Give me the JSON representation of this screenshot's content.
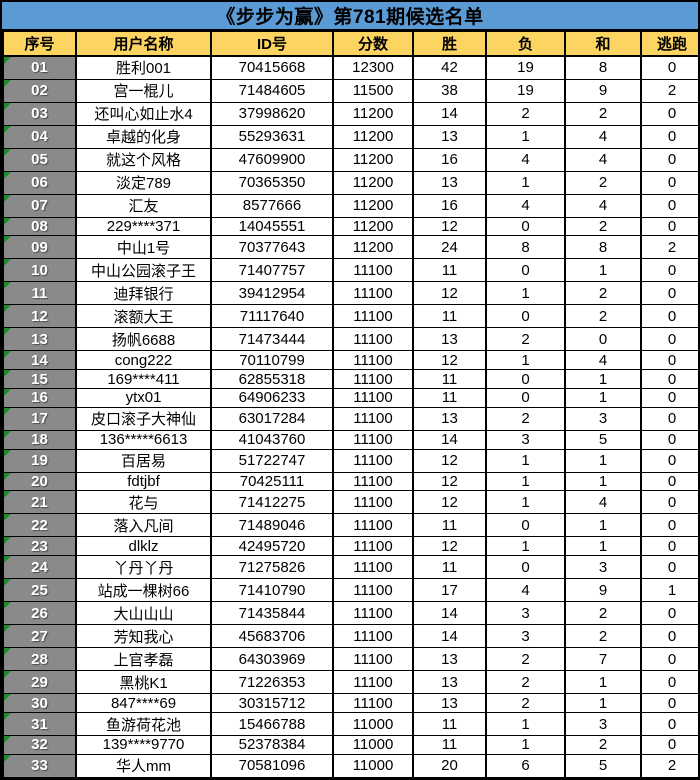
{
  "title": "《步步为赢》第781期候选名单",
  "colors": {
    "title_bg": "#5B9BD5",
    "header_bg": "#FCD462",
    "index_bg": "#8A8A8A",
    "index_text": "#FFFFFF",
    "corner_flag_green": "#1F8A2F",
    "border": "#000000"
  },
  "table": {
    "columns": [
      "序号",
      "用户名称",
      "ID号",
      "分数",
      "胜",
      "负",
      "和",
      "逃跑"
    ],
    "rows": [
      [
        "01",
        "胜利001",
        "70415668",
        "12300",
        "42",
        "19",
        "8",
        "0"
      ],
      [
        "02",
        "宫一棍儿",
        "71484605",
        "11500",
        "38",
        "19",
        "9",
        "2"
      ],
      [
        "03",
        "还叫心如止水4",
        "37998620",
        "11200",
        "14",
        "2",
        "2",
        "0"
      ],
      [
        "04",
        "卓越的化身",
        "55293631",
        "11200",
        "13",
        "1",
        "4",
        "0"
      ],
      [
        "05",
        "就这个风格",
        "47609900",
        "11200",
        "16",
        "4",
        "4",
        "0"
      ],
      [
        "06",
        "淡定789",
        "70365350",
        "11200",
        "13",
        "1",
        "2",
        "0"
      ],
      [
        "07",
        "汇友",
        "8577666",
        "11200",
        "16",
        "4",
        "4",
        "0"
      ],
      [
        "08",
        "229****371",
        "14045551",
        "11200",
        "12",
        "0",
        "2",
        "0"
      ],
      [
        "09",
        "中山1号",
        "70377643",
        "11200",
        "24",
        "8",
        "8",
        "2"
      ],
      [
        "10",
        "中山公园滚子王",
        "71407757",
        "11100",
        "11",
        "0",
        "1",
        "0"
      ],
      [
        "11",
        "迪拜银行",
        "39412954",
        "11100",
        "12",
        "1",
        "2",
        "0"
      ],
      [
        "12",
        "滚额大王",
        "71117640",
        "11100",
        "11",
        "0",
        "2",
        "0"
      ],
      [
        "13",
        "扬帆6688",
        "71473444",
        "11100",
        "13",
        "2",
        "0",
        "0"
      ],
      [
        "14",
        "cong222",
        "70110799",
        "11100",
        "12",
        "1",
        "4",
        "0"
      ],
      [
        "15",
        "169****411",
        "62855318",
        "11100",
        "11",
        "0",
        "1",
        "0"
      ],
      [
        "16",
        "ytx01",
        "64906233",
        "11100",
        "11",
        "0",
        "1",
        "0"
      ],
      [
        "17",
        "皮口滚子大神仙",
        "63017284",
        "11100",
        "13",
        "2",
        "3",
        "0"
      ],
      [
        "18",
        "136*****6613",
        "41043760",
        "11100",
        "14",
        "3",
        "5",
        "0"
      ],
      [
        "19",
        "百居易",
        "51722747",
        "11100",
        "12",
        "1",
        "1",
        "0"
      ],
      [
        "20",
        "fdtjbf",
        "70425111",
        "11100",
        "12",
        "1",
        "1",
        "0"
      ],
      [
        "21",
        "花与",
        "71412275",
        "11100",
        "12",
        "1",
        "4",
        "0"
      ],
      [
        "22",
        "落入凡间",
        "71489046",
        "11100",
        "11",
        "0",
        "1",
        "0"
      ],
      [
        "23",
        "dlklz",
        "42495720",
        "11100",
        "12",
        "1",
        "1",
        "0"
      ],
      [
        "24",
        "丫丹丫丹",
        "71275826",
        "11100",
        "11",
        "0",
        "3",
        "0"
      ],
      [
        "25",
        "站成一棵树66",
        "71410790",
        "11100",
        "17",
        "4",
        "9",
        "1"
      ],
      [
        "26",
        "大山山山",
        "71435844",
        "11100",
        "14",
        "3",
        "2",
        "0"
      ],
      [
        "27",
        "芳知我心",
        "45683706",
        "11100",
        "14",
        "3",
        "2",
        "0"
      ],
      [
        "28",
        "上官孝磊",
        "64303969",
        "11100",
        "13",
        "2",
        "7",
        "0"
      ],
      [
        "29",
        "黑桃K1",
        "71226353",
        "11100",
        "13",
        "2",
        "1",
        "0"
      ],
      [
        "30",
        "847****69",
        "30315712",
        "11100",
        "13",
        "2",
        "1",
        "0"
      ],
      [
        "31",
        "鱼游荷花池",
        "15466788",
        "11000",
        "11",
        "1",
        "3",
        "0"
      ],
      [
        "32",
        "139****9770",
        "52378384",
        "11000",
        "11",
        "1",
        "2",
        "0"
      ],
      [
        "33",
        "华人mm",
        "70581096",
        "11000",
        "20",
        "6",
        "5",
        "2"
      ]
    ]
  }
}
